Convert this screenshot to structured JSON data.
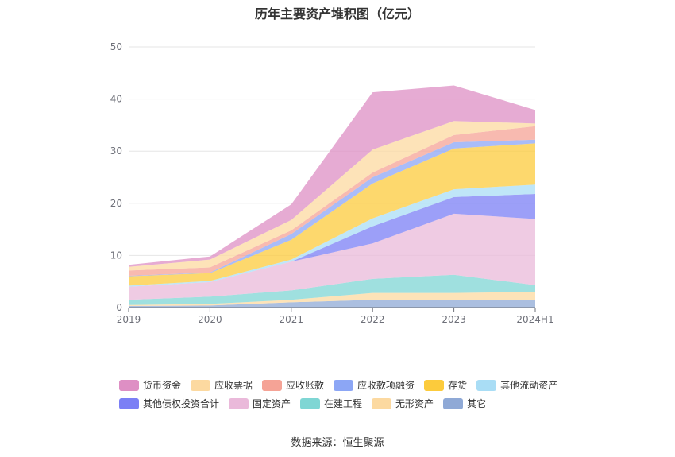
{
  "chart_data": {
    "type": "area",
    "stacked": true,
    "title": "历年主要资产堆积图（亿元）",
    "source": "数据来源：恒生聚源",
    "categories": [
      "2019",
      "2020",
      "2021",
      "2022",
      "2023",
      "2024H1"
    ],
    "ylim": [
      0,
      50
    ],
    "yticks": [
      "0",
      "10",
      "20",
      "30",
      "40",
      "50"
    ],
    "grid": true,
    "legend_position": "bottom",
    "series": [
      {
        "name": "其它",
        "color": "#8fa9d6",
        "values": [
          0.3,
          0.4,
          1.0,
          1.5,
          1.5,
          1.5
        ]
      },
      {
        "name": "无形资产",
        "color": "#fcd9a0",
        "values": [
          0.2,
          0.3,
          0.5,
          1.3,
          1.3,
          1.5
        ]
      },
      {
        "name": "在建工程",
        "color": "#7fd6d4",
        "values": [
          1.0,
          1.4,
          1.8,
          2.7,
          3.5,
          1.3
        ]
      },
      {
        "name": "固定资产",
        "color": "#eab9da",
        "values": [
          2.5,
          2.8,
          5.5,
          6.8,
          11.7,
          12.7
        ]
      },
      {
        "name": "其他债权投资合计",
        "color": "#7b7ff5",
        "values": [
          0.0,
          0.0,
          0.0,
          3.3,
          3.2,
          4.8
        ]
      },
      {
        "name": "其他流动资产",
        "color": "#a9ddf5",
        "values": [
          0.2,
          0.2,
          0.4,
          1.5,
          1.5,
          1.8
        ]
      },
      {
        "name": "存货",
        "color": "#fccb3c",
        "values": [
          1.8,
          1.5,
          3.8,
          6.7,
          7.8,
          7.9
        ]
      },
      {
        "name": "应收款项融资",
        "color": "#8ca6f5",
        "values": [
          0.1,
          0.1,
          1.1,
          1.2,
          1.2,
          0.7
        ]
      },
      {
        "name": "应收账款",
        "color": "#f5a396",
        "values": [
          1.0,
          1.0,
          0.7,
          0.9,
          1.4,
          2.6
        ]
      },
      {
        "name": "应收票据",
        "color": "#fcd9a0",
        "values": [
          0.7,
          1.5,
          2.0,
          4.4,
          2.7,
          0.5
        ]
      },
      {
        "name": "货币资金",
        "color": "#de8fc4",
        "values": [
          0.4,
          0.6,
          3.0,
          11.0,
          6.8,
          2.6
        ]
      }
    ],
    "legend_order": [
      [
        "货币资金",
        "应收票据",
        "应收账款",
        "应收款项融资",
        "存货",
        "其他流动资产"
      ],
      [
        "其他债权投资合计",
        "固定资产",
        "在建工程",
        "无形资产",
        "其它"
      ]
    ]
  }
}
